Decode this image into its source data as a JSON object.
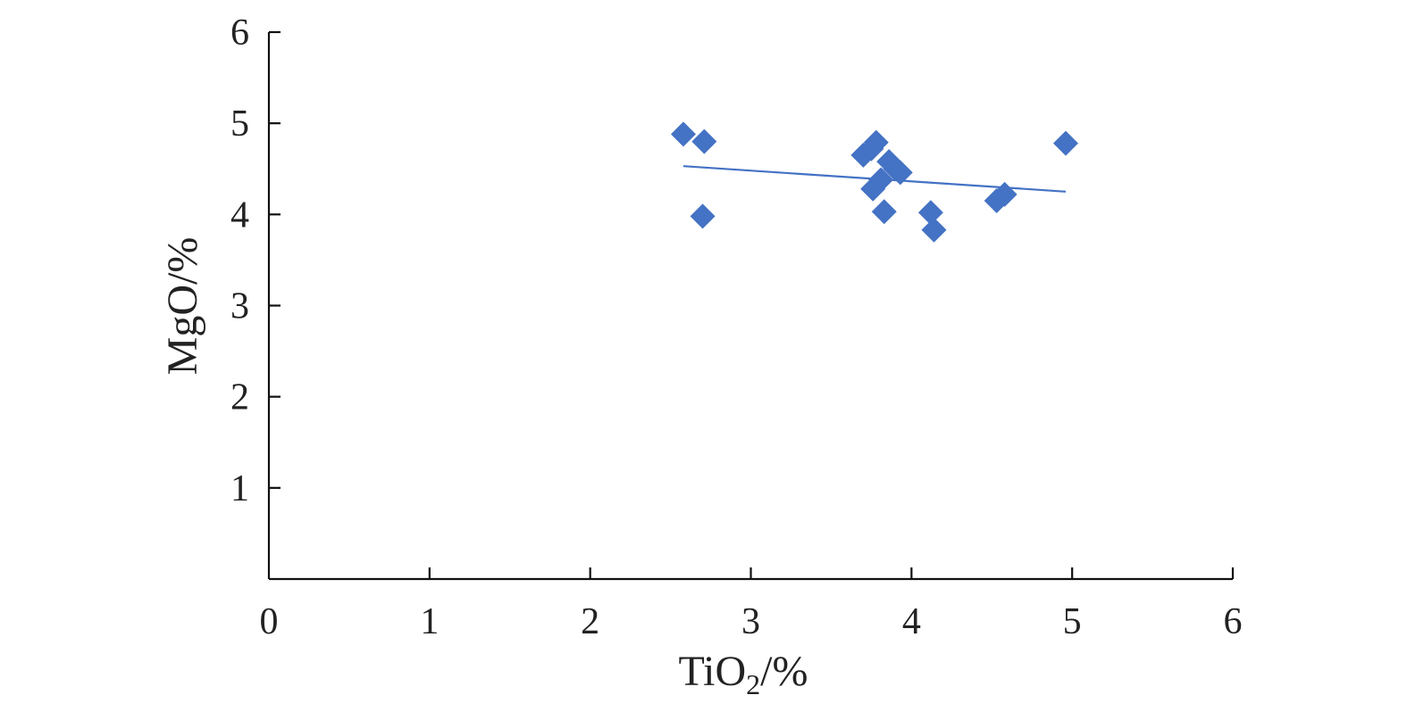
{
  "chart_data": {
    "type": "scatter",
    "title": "",
    "xlabel": {
      "main": "TiO",
      "sub": "2",
      "suffix": "/%"
    },
    "ylabel": "MgO/%",
    "xlim": [
      0,
      6
    ],
    "ylim": [
      0,
      6
    ],
    "xticks": [
      "0",
      "1",
      "2",
      "3",
      "4",
      "5",
      "6"
    ],
    "yticks": [
      "1",
      "2",
      "3",
      "4",
      "5",
      "6"
    ],
    "grid": false,
    "legend": "none",
    "marker": "diamond",
    "color": "#4472C4",
    "points": [
      {
        "x": 2.58,
        "y": 4.88
      },
      {
        "x": 2.71,
        "y": 4.8
      },
      {
        "x": 2.7,
        "y": 3.98
      },
      {
        "x": 3.7,
        "y": 4.65
      },
      {
        "x": 3.75,
        "y": 4.72
      },
      {
        "x": 3.78,
        "y": 4.79
      },
      {
        "x": 3.76,
        "y": 4.28
      },
      {
        "x": 3.81,
        "y": 4.38
      },
      {
        "x": 3.86,
        "y": 4.58
      },
      {
        "x": 3.9,
        "y": 4.5
      },
      {
        "x": 3.93,
        "y": 4.46
      },
      {
        "x": 3.83,
        "y": 4.03
      },
      {
        "x": 4.12,
        "y": 4.02
      },
      {
        "x": 4.14,
        "y": 3.83
      },
      {
        "x": 4.53,
        "y": 4.15
      },
      {
        "x": 4.58,
        "y": 4.22
      },
      {
        "x": 4.96,
        "y": 4.78
      }
    ],
    "trendline": {
      "x": [
        2.58,
        4.96
      ],
      "y": [
        4.53,
        4.25
      ]
    }
  }
}
